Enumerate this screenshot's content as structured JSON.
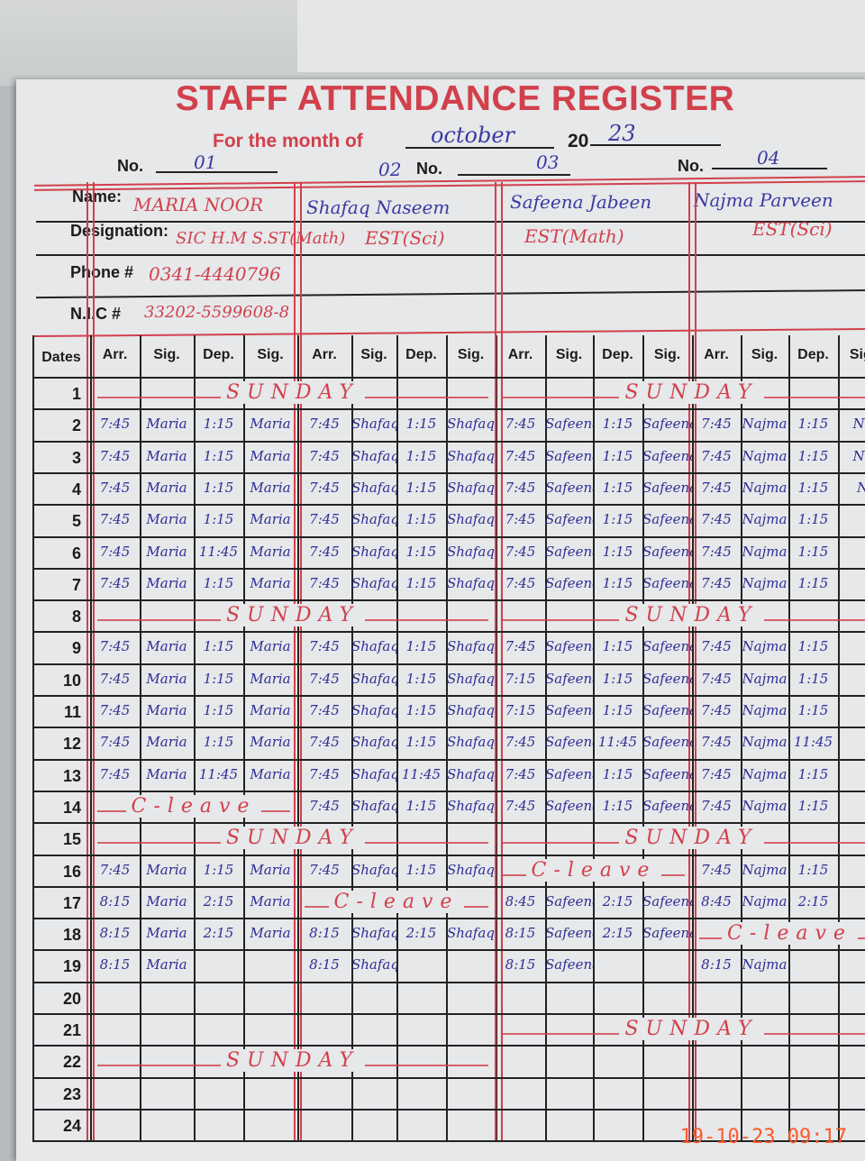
{
  "title": "STAFF ATTENDANCE REGISTER",
  "month_label": "For the month of",
  "month_value": "october",
  "year_prefix": "20",
  "year_value": "23",
  "no_label": "No.",
  "staff_numbers": [
    "01",
    "02",
    "03",
    "04"
  ],
  "field_labels": {
    "name": "Name:",
    "designation": "Designation:",
    "phone": "Phone #",
    "nic": "N.I.C #"
  },
  "staff": [
    {
      "name": "MARIA NOOR",
      "designation": "SIC H.M S.ST(Math)",
      "phone": "0341-4440796",
      "nic": "33202-5599608-8"
    },
    {
      "name": "Shafaq Naseem",
      "designation": "EST(Sci)",
      "phone": "",
      "nic": ""
    },
    {
      "name": "Safeena Jabeen",
      "designation": "EST(Math)",
      "phone": "",
      "nic": ""
    },
    {
      "name": "Najma Parveen",
      "designation": "EST(Sci)",
      "phone": "",
      "nic": ""
    }
  ],
  "columns": {
    "dates": "Dates",
    "group": [
      "Arr.",
      "Sig.",
      "Dep.",
      "Sig."
    ]
  },
  "rows": [
    {
      "date": "1",
      "cells": [],
      "notes": [
        {
          "text": "SUNDAY",
          "start": 0,
          "span": 8
        },
        {
          "text": "SUNDAY",
          "start": 8,
          "span": 8
        }
      ]
    },
    {
      "date": "2",
      "cells": [
        "7:45",
        "Maria",
        "1:15",
        "Maria",
        "7:45",
        "Shafaq",
        "1:15",
        "Shafaq",
        "7:45",
        "Safeena",
        "1:15",
        "Safeena",
        "7:45",
        "Najma",
        "1:15",
        "Na"
      ],
      "notes": []
    },
    {
      "date": "3",
      "cells": [
        "7:45",
        "Maria",
        "1:15",
        "Maria",
        "7:45",
        "Shafaq",
        "1:15",
        "Shafaq",
        "7:45",
        "Safeena",
        "1:15",
        "Safeena",
        "7:45",
        "Najma",
        "1:15",
        "Na"
      ],
      "notes": []
    },
    {
      "date": "4",
      "cells": [
        "7:45",
        "Maria",
        "1:15",
        "Maria",
        "7:45",
        "Shafaq",
        "1:15",
        "Shafaq",
        "7:45",
        "Safeena",
        "1:15",
        "Safeena",
        "7:45",
        "Najma",
        "1:15",
        "N"
      ],
      "notes": []
    },
    {
      "date": "5",
      "cells": [
        "7:45",
        "Maria",
        "1:15",
        "Maria",
        "7:45",
        "Shafaq",
        "1:15",
        "Shafaq",
        "7:45",
        "Safeena",
        "1:15",
        "Safeena",
        "7:45",
        "Najma",
        "1:15",
        ""
      ],
      "notes": []
    },
    {
      "date": "6",
      "cells": [
        "7:45",
        "Maria",
        "11:45",
        "Maria",
        "7:45",
        "Shafaq",
        "1:15",
        "Shafaq",
        "7:45",
        "Safeena",
        "1:15",
        "Safeena",
        "7:45",
        "Najma",
        "1:15",
        ""
      ],
      "notes": []
    },
    {
      "date": "7",
      "cells": [
        "7:45",
        "Maria",
        "1:15",
        "Maria",
        "7:45",
        "Shafaq",
        "1:15",
        "Shafaq",
        "7:45",
        "Safeena",
        "1:15",
        "Safeena",
        "7:45",
        "Najma",
        "1:15",
        ""
      ],
      "notes": []
    },
    {
      "date": "8",
      "cells": [],
      "notes": [
        {
          "text": "SUNDAY",
          "start": 0,
          "span": 8
        },
        {
          "text": "SUNDAY",
          "start": 8,
          "span": 8
        }
      ]
    },
    {
      "date": "9",
      "cells": [
        "7:45",
        "Maria",
        "1:15",
        "Maria",
        "7:45",
        "Shafaq",
        "1:15",
        "Shafaq",
        "7:45",
        "Safeena",
        "1:15",
        "Safeena",
        "7:45",
        "Najma",
        "1:15",
        ""
      ],
      "notes": []
    },
    {
      "date": "10",
      "cells": [
        "7:45",
        "Maria",
        "1:15",
        "Maria",
        "7:45",
        "Shafaq",
        "1:15",
        "Shafaq",
        "7:15",
        "Safeena",
        "1:15",
        "Safeena",
        "7:45",
        "Najma",
        "1:15",
        ""
      ],
      "notes": []
    },
    {
      "date": "11",
      "cells": [
        "7:45",
        "Maria",
        "1:15",
        "Maria",
        "7:45",
        "Shafaq",
        "1:15",
        "Shafaq",
        "7:15",
        "Safeena",
        "1:15",
        "Safeena",
        "7:45",
        "Najma",
        "1:15",
        ""
      ],
      "notes": []
    },
    {
      "date": "12",
      "cells": [
        "7:45",
        "Maria",
        "1:15",
        "Maria",
        "7:45",
        "Shafaq",
        "1:15",
        "Shafaq",
        "7:45",
        "Safeena",
        "11:45",
        "Safeena",
        "7:45",
        "Najma",
        "11:45",
        ""
      ],
      "notes": []
    },
    {
      "date": "13",
      "cells": [
        "7:45",
        "Maria",
        "11:45",
        "Maria",
        "7:45",
        "Shafaq",
        "11:45",
        "Shafaq",
        "7:45",
        "Safeena",
        "1:15",
        "Safeena",
        "7:45",
        "Najma",
        "1:15",
        ""
      ],
      "notes": []
    },
    {
      "date": "14",
      "cells": [
        "",
        "",
        "",
        "",
        "7:45",
        "Shafaq",
        "1:15",
        "Shafaq",
        "7:45",
        "Safeena",
        "1:15",
        "Safeena",
        "7:45",
        "Najma",
        "1:15",
        ""
      ],
      "notes": [
        {
          "text": "C-leave",
          "start": 0,
          "span": 4
        }
      ]
    },
    {
      "date": "15",
      "cells": [],
      "notes": [
        {
          "text": "SUNDAY",
          "start": 0,
          "span": 8
        },
        {
          "text": "SUNDAY",
          "start": 8,
          "span": 8
        }
      ]
    },
    {
      "date": "16",
      "cells": [
        "7:45",
        "Maria",
        "1:15",
        "Maria",
        "7:45",
        "Shafaq",
        "1:15",
        "Shafaq",
        "",
        "",
        "",
        "",
        "7:45",
        "Najma",
        "1:15",
        ""
      ],
      "notes": [
        {
          "text": "C-leave",
          "start": 8,
          "span": 4
        }
      ]
    },
    {
      "date": "17",
      "cells": [
        "8:15",
        "Maria",
        "2:15",
        "Maria",
        "",
        "",
        "",
        "",
        "8:45",
        "Safeena",
        "2:15",
        "Safeena",
        "8:45",
        "Najma",
        "2:15",
        ""
      ],
      "notes": [
        {
          "text": "C-leave",
          "start": 4,
          "span": 4
        }
      ]
    },
    {
      "date": "18",
      "cells": [
        "8:15",
        "Maria",
        "2:15",
        "Maria",
        "8:15",
        "Shafaq",
        "2:15",
        "Shafaq",
        "8:15",
        "Safeena",
        "2:15",
        "Safeena",
        "",
        "",
        "",
        ""
      ],
      "notes": [
        {
          "text": "C-leave",
          "start": 12,
          "span": 4
        }
      ]
    },
    {
      "date": "19",
      "cells": [
        "8:15",
        "Maria",
        "",
        "",
        "8:15",
        "Shafaq",
        "",
        "",
        "8:15",
        "Safeena",
        "",
        "",
        "8:15",
        "Najma",
        "",
        ""
      ],
      "notes": []
    },
    {
      "date": "20",
      "cells": [],
      "notes": []
    },
    {
      "date": "21",
      "cells": [],
      "notes": [
        {
          "text": "SUNDAY",
          "start": 8,
          "span": 8
        }
      ]
    },
    {
      "date": "22",
      "cells": [],
      "notes": [
        {
          "text": "SUNDAY",
          "start": 0,
          "span": 8
        }
      ]
    },
    {
      "date": "23",
      "cells": [],
      "notes": []
    },
    {
      "date": "24",
      "cells": [],
      "notes": []
    }
  ],
  "timestamp": "19-10-23  09:17",
  "colors": {
    "print_red": "#d2404c",
    "ink_blue": "#2e2e94",
    "paper": "#e6e8ea"
  }
}
